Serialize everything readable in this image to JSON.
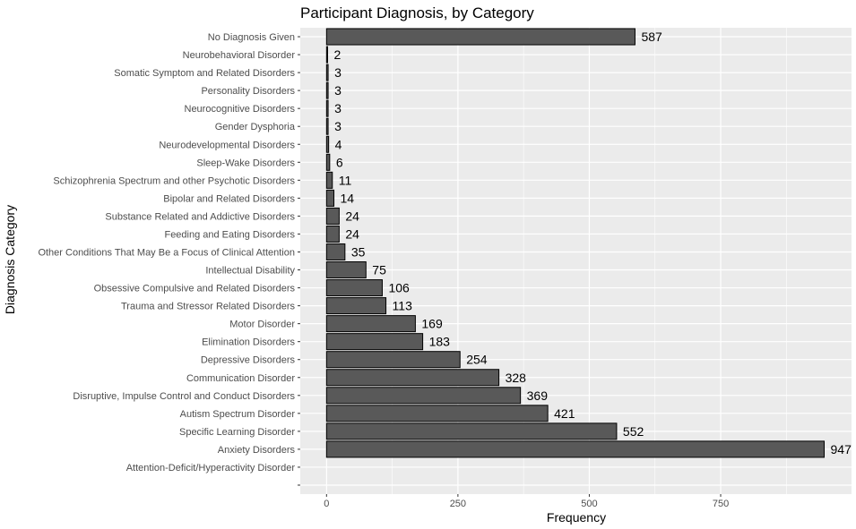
{
  "chart_data": {
    "type": "bar",
    "orientation": "horizontal",
    "title": "Participant Diagnosis, by Category",
    "xlabel": "Frequency",
    "ylabel": "Diagnosis Category",
    "xlim": [
      -50,
      999
    ],
    "x_ticks": [
      0,
      250,
      500,
      750
    ],
    "grid": true,
    "bar_fill": "#595959",
    "bar_stroke": "#000000",
    "panel_background": "#ebebeb",
    "categories": [
      "No Diagnosis Given",
      "Neurobehavioral Disorder",
      "Somatic Symptom and Related Disorders",
      "Personality Disorders",
      "Neurocognitive Disorders",
      "Gender Dysphoria",
      "Neurodevelopmental Disorders",
      "Sleep-Wake Disorders",
      "Schizophrenia Spectrum and other Psychotic Disorders",
      "Bipolar and Related Disorders",
      "Substance Related and Addictive Disorders",
      "Feeding and Eating Disorders",
      "Other Conditions That May Be a Focus of Clinical Attention",
      "Intellectual Disability",
      "Obsessive Compulsive and Related Disorders",
      "Trauma and Stressor Related Disorders",
      "Motor Disorder",
      "Elimination Disorders",
      "Depressive Disorders",
      "Communication Disorder",
      "Disruptive, Impulse Control and Conduct Disorders",
      "Autism Spectrum Disorder",
      "Specific Learning Disorder",
      "Anxiety Disorders",
      "Attention-Deficit/Hyperactivity Disorder",
      ""
    ],
    "values": [
      587,
      2,
      3,
      3,
      3,
      3,
      4,
      6,
      11,
      14,
      24,
      24,
      35,
      75,
      106,
      113,
      169,
      183,
      254,
      328,
      369,
      421,
      552,
      947,
      null,
      null
    ],
    "value_labels": [
      "587",
      "2",
      "3",
      "3",
      "3",
      "3",
      "4",
      "6",
      "11",
      "14",
      "24",
      "24",
      "35",
      "75",
      "106",
      "113",
      "169",
      "183",
      "254",
      "328",
      "369",
      "421",
      "552",
      "947",
      "",
      ""
    ]
  }
}
